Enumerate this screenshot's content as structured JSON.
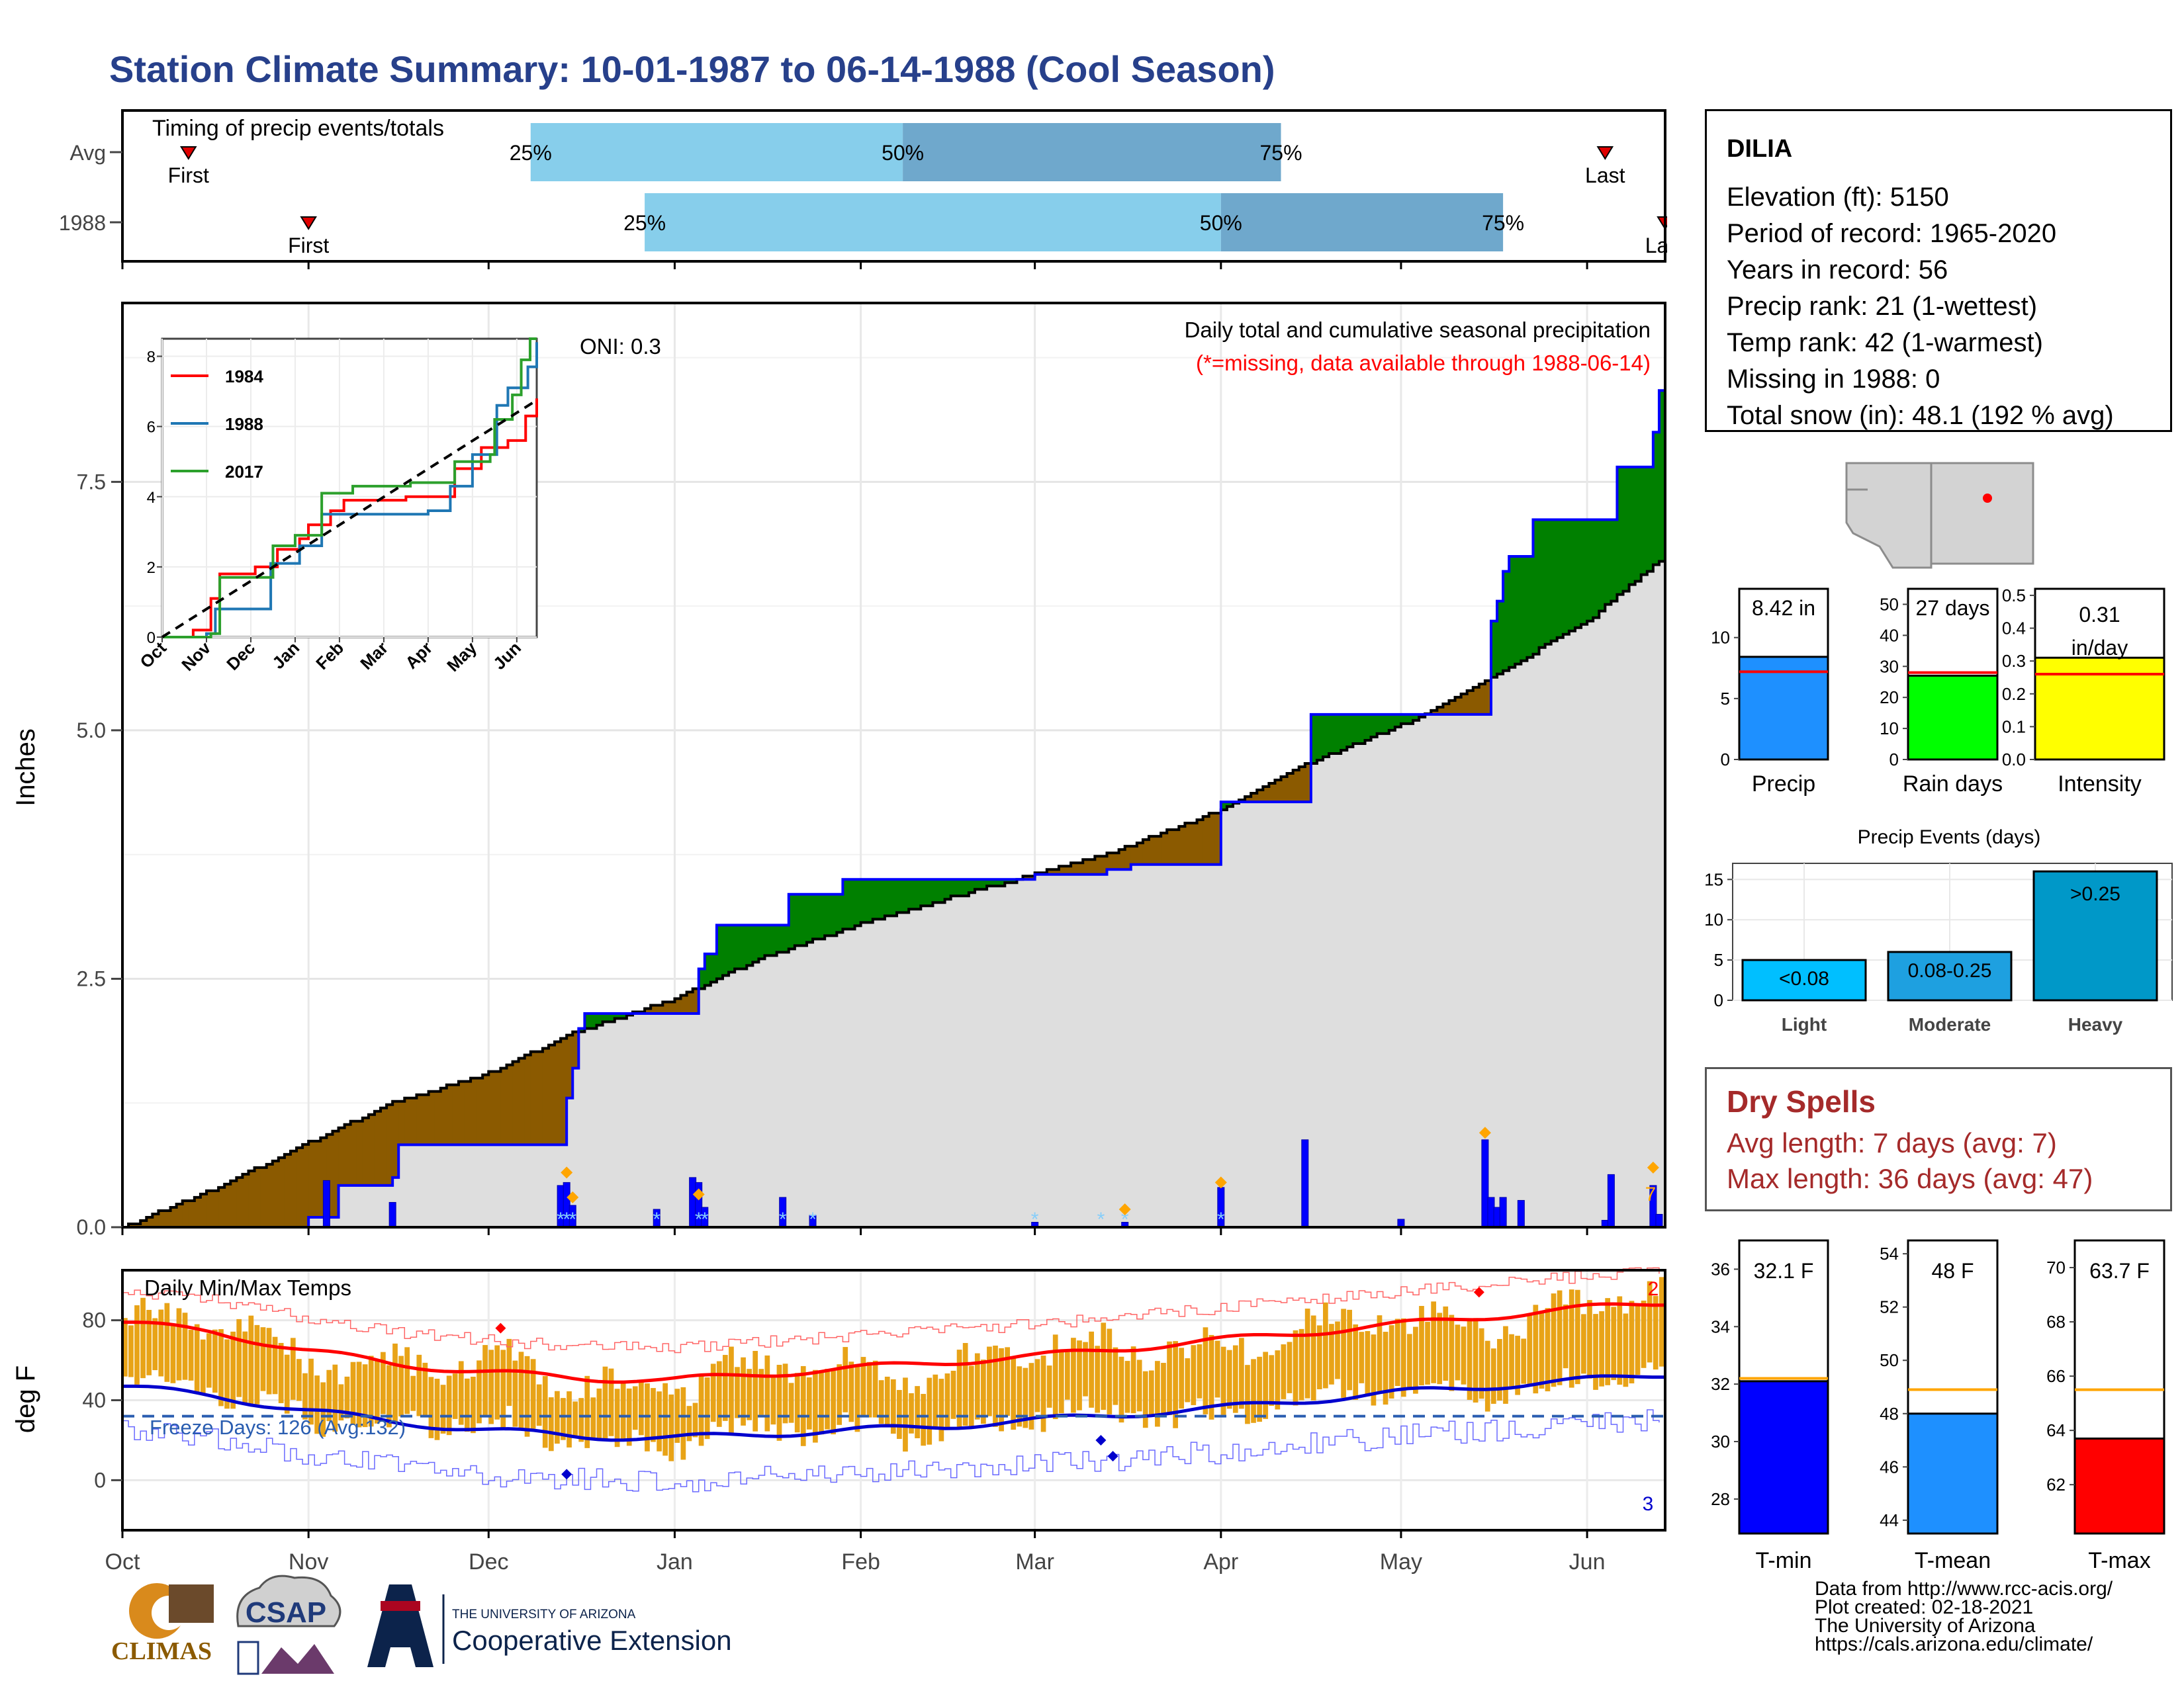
{
  "page": {
    "title": "Station Climate Summary: 10-01-1987 to 06-14-1988 (Cool Season)"
  },
  "colors": {
    "title_blue": "#27408b",
    "light_blue": "#87ceeb",
    "mid_blue": "#6fa8cc",
    "above_green": "#008000",
    "below_brown": "#8b5a00",
    "normal_gray": "#dedede",
    "precip_bar": "#0000ff",
    "temp_bar": "#e8a317",
    "tmax_red": "#ff0000",
    "tmin_blue": "#0000cd"
  },
  "station": {
    "name": "DILIA",
    "lines": [
      "Elevation (ft): 5150",
      "Period of record: 1965-2020",
      "Years in record: 56",
      "Precip rank: 21 (1-wettest)",
      "Temp rank: 42 (1-warmest)",
      "Missing in 1988: 0",
      "Total snow (in): 48.1 (192 % avg)"
    ]
  },
  "dry_spells": {
    "title": "Dry Spells",
    "avg": "Avg length: 7 days (avg: 7)",
    "max": "Max length: 36 days (avg: 47)"
  },
  "credits": [
    "Data from http://www.rcc-acis.org/",
    "Plot created: 02-18-2021",
    "The University of Arizona",
    "https://cals.arizona.edu/climate/"
  ],
  "logos": {
    "climas": "CLIMAS",
    "csap": "CSAP",
    "ua_top": "THE UNIVERSITY OF ARIZONA",
    "ua_main": "Cooperative Extension"
  },
  "chart_data": [
    {
      "id": "timing",
      "type": "bar",
      "title": "Timing of precip events/totals",
      "categories": [
        "Avg",
        "1988"
      ],
      "x_domain": [
        "1987-10-01",
        "1988-06-14"
      ],
      "rows": [
        {
          "label": "Avg",
          "first_date": "1987-10-12",
          "p25_date": "1987-12-08",
          "p50_date": "1988-02-08",
          "p75_date": "1988-04-11",
          "last_date": "1988-06-04",
          "first_label": "First",
          "last_label": "Last"
        },
        {
          "label": "1988",
          "first_date": "1987-11-01",
          "p25_date": "1987-12-27",
          "p50_date": "1988-04-01",
          "p75_date": "1988-05-18",
          "last_date": "1988-06-14",
          "first_label": "First",
          "last_label": "Last"
        }
      ],
      "pct_labels": [
        "25%",
        "50%",
        "75%"
      ]
    },
    {
      "id": "precip",
      "type": "area",
      "title": "Daily total and cumulative seasonal precipitation",
      "subtitle": "(*=missing, data available through 1988-06-14)",
      "annotation": "ONI: 0.3",
      "ylabel": "Inches",
      "ylim": [
        0,
        9.3
      ],
      "yticks": [
        "0.0",
        "2.5",
        "5.0",
        "7.5"
      ],
      "x_range": [
        "1987-10-01",
        "1988-06-14"
      ],
      "observed_cumulative": [
        [
          "1987-10-01",
          0.0
        ],
        [
          "1987-10-31",
          0.0
        ],
        [
          "1987-11-01",
          0.1
        ],
        [
          "1987-11-06",
          0.42
        ],
        [
          "1987-11-15",
          0.5
        ],
        [
          "1987-11-16",
          0.83
        ],
        [
          "1987-12-13",
          0.83
        ],
        [
          "1987-12-14",
          1.3
        ],
        [
          "1987-12-15",
          1.6
        ],
        [
          "1987-12-16",
          2.0
        ],
        [
          "1987-12-17",
          2.15
        ],
        [
          "1988-01-04",
          2.15
        ],
        [
          "1988-01-05",
          2.6
        ],
        [
          "1988-01-06",
          2.75
        ],
        [
          "1988-01-08",
          3.04
        ],
        [
          "1988-01-19",
          3.04
        ],
        [
          "1988-01-20",
          3.35
        ],
        [
          "1988-01-28",
          3.35
        ],
        [
          "1988-01-29",
          3.5
        ],
        [
          "1988-02-28",
          3.5
        ],
        [
          "1988-03-01",
          3.55
        ],
        [
          "1988-03-13",
          3.6
        ],
        [
          "1988-03-17",
          3.65
        ],
        [
          "1988-03-31",
          3.65
        ],
        [
          "1988-04-01",
          4.28
        ],
        [
          "1988-04-15",
          4.28
        ],
        [
          "1988-04-16",
          5.16
        ],
        [
          "1988-05-15",
          5.16
        ],
        [
          "1988-05-16",
          6.1
        ],
        [
          "1988-05-17",
          6.3
        ],
        [
          "1988-05-18",
          6.6
        ],
        [
          "1988-05-19",
          6.75
        ],
        [
          "1988-05-22",
          6.75
        ],
        [
          "1988-05-23",
          7.12
        ],
        [
          "1988-06-05",
          7.12
        ],
        [
          "1988-06-06",
          7.65
        ],
        [
          "1988-06-11",
          7.65
        ],
        [
          "1988-06-12",
          8.0
        ],
        [
          "1988-06-13",
          8.42
        ],
        [
          "1988-06-14",
          8.42
        ]
      ],
      "normal_cumulative": [
        [
          "1987-10-01",
          0.0
        ],
        [
          "1987-10-15",
          0.35
        ],
        [
          "1987-11-01",
          0.85
        ],
        [
          "1987-11-15",
          1.25
        ],
        [
          "1987-12-01",
          1.55
        ],
        [
          "1987-12-15",
          1.95
        ],
        [
          "1988-01-01",
          2.3
        ],
        [
          "1988-01-15",
          2.7
        ],
        [
          "1988-02-01",
          3.05
        ],
        [
          "1988-02-15",
          3.3
        ],
        [
          "1988-03-01",
          3.55
        ],
        [
          "1988-03-15",
          3.8
        ],
        [
          "1988-04-01",
          4.2
        ],
        [
          "1988-04-15",
          4.65
        ],
        [
          "1988-05-01",
          5.05
        ],
        [
          "1988-05-15",
          5.5
        ],
        [
          "1988-06-01",
          6.1
        ],
        [
          "1988-06-14",
          6.75
        ]
      ],
      "daily_precip": [
        [
          "1987-11-04",
          0.47
        ],
        [
          "1987-11-15",
          0.25
        ],
        [
          "1987-12-13",
          0.42
        ],
        [
          "1987-12-14",
          0.45
        ],
        [
          "1987-12-15",
          0.22
        ],
        [
          "1987-12-29",
          0.18
        ],
        [
          "1988-01-04",
          0.5
        ],
        [
          "1988-01-05",
          0.45
        ],
        [
          "1988-01-06",
          0.2
        ],
        [
          "1988-01-19",
          0.3
        ],
        [
          "1988-01-24",
          0.12
        ],
        [
          "1988-03-01",
          0.05
        ],
        [
          "1988-03-16",
          0.05
        ],
        [
          "1988-04-01",
          0.4
        ],
        [
          "1988-04-15",
          0.88
        ],
        [
          "1988-05-01",
          0.08
        ],
        [
          "1988-05-15",
          0.88
        ],
        [
          "1988-05-16",
          0.3
        ],
        [
          "1988-05-17",
          0.2
        ],
        [
          "1988-05-18",
          0.3
        ],
        [
          "1988-05-21",
          0.27
        ],
        [
          "1988-06-04",
          0.07
        ],
        [
          "1988-06-05",
          0.53
        ],
        [
          "1988-06-12",
          0.42
        ],
        [
          "1988-06-13",
          0.13
        ]
      ],
      "snow_markers": [
        "1987-12-13",
        "1987-12-14",
        "1987-12-15",
        "1987-12-29",
        "1988-01-05",
        "1988-01-06",
        "1988-01-19",
        "1988-01-24",
        "1988-03-01",
        "1988-03-12",
        "1988-03-16",
        "1988-04-01"
      ],
      "record_markers": [
        [
          "1987-12-14",
          0.55
        ],
        [
          "1987-12-15",
          0.3
        ],
        [
          "1988-01-05",
          0.33
        ],
        [
          "1988-03-16",
          0.18
        ],
        [
          "1988-04-01",
          0.45
        ],
        [
          "1988-05-15",
          0.95
        ],
        [
          "1988-06-12",
          0.6
        ]
      ],
      "record_count_label": "7"
    },
    {
      "id": "inset",
      "type": "line",
      "x_ticks": [
        "Oct",
        "Nov",
        "Dec",
        "Jan",
        "Feb",
        "Mar",
        "Apr",
        "May",
        "Jun"
      ],
      "ylim": [
        0,
        8.5
      ],
      "yticks": [
        "0",
        "2",
        "4",
        "6",
        "8"
      ],
      "series": [
        {
          "name": "1984",
          "color": "#ff0000",
          "points": [
            [
              0,
              0
            ],
            [
              0.7,
              0.2
            ],
            [
              1.1,
              1.1
            ],
            [
              1.3,
              1.8
            ],
            [
              2.1,
              2.0
            ],
            [
              2.6,
              2.5
            ],
            [
              3.1,
              2.8
            ],
            [
              3.3,
              3.2
            ],
            [
              3.8,
              3.6
            ],
            [
              4.1,
              3.9
            ],
            [
              5.5,
              4.0
            ],
            [
              6.4,
              4.0
            ],
            [
              6.6,
              4.8
            ],
            [
              7.2,
              5.4
            ],
            [
              7.8,
              5.6
            ],
            [
              8.2,
              6.3
            ],
            [
              8.45,
              6.8
            ]
          ]
        },
        {
          "name": "1988",
          "color": "#1f77b4",
          "points": [
            [
              0,
              0
            ],
            [
              1.0,
              0.1
            ],
            [
              1.2,
              0.8
            ],
            [
              2.4,
              0.8
            ],
            [
              2.45,
              2.1
            ],
            [
              3.1,
              2.6
            ],
            [
              3.6,
              3.5
            ],
            [
              5.0,
              3.5
            ],
            [
              6.0,
              3.6
            ],
            [
              6.5,
              4.3
            ],
            [
              7.0,
              5.2
            ],
            [
              7.5,
              5.2
            ],
            [
              7.55,
              6.6
            ],
            [
              7.8,
              7.1
            ],
            [
              8.2,
              7.1
            ],
            [
              8.25,
              7.7
            ],
            [
              8.45,
              8.4
            ]
          ]
        },
        {
          "name": "2017",
          "color": "#2ca02c",
          "points": [
            [
              0,
              0
            ],
            [
              1.1,
              0.1
            ],
            [
              1.3,
              1.7
            ],
            [
              2.5,
              2.6
            ],
            [
              3.0,
              2.9
            ],
            [
              3.6,
              4.1
            ],
            [
              4.3,
              4.3
            ],
            [
              5.6,
              4.4
            ],
            [
              6.6,
              5.0
            ],
            [
              7.4,
              5.2
            ],
            [
              7.5,
              6.2
            ],
            [
              7.9,
              6.9
            ],
            [
              8.1,
              7.9
            ],
            [
              8.3,
              8.5
            ],
            [
              8.45,
              8.5
            ]
          ]
        }
      ],
      "normal_line": [
        [
          0,
          0
        ],
        [
          8.45,
          6.75
        ]
      ]
    },
    {
      "id": "temps",
      "type": "bar",
      "title": "Daily Min/Max Temps",
      "ylabel": "deg F",
      "ylim": [
        -25,
        105
      ],
      "yticks": [
        "0",
        "40",
        "80"
      ],
      "freeze_line": 32,
      "freeze_label": "Freeze Days: 126 (Avg:132)",
      "max_records_label": "2",
      "min_records_label": "3",
      "x_ticks": [
        "Oct",
        "Nov",
        "Dec",
        "Jan",
        "Feb",
        "Mar",
        "Apr",
        "May",
        "Jun"
      ],
      "normal_max": [
        [
          0,
          79
        ],
        [
          0.5,
          74
        ],
        [
          1.0,
          65
        ],
        [
          1.5,
          58
        ],
        [
          2.0,
          54
        ],
        [
          2.5,
          51
        ],
        [
          3.0,
          50
        ],
        [
          3.5,
          53
        ],
        [
          4.0,
          56
        ],
        [
          4.5,
          59
        ],
        [
          5.0,
          62
        ],
        [
          5.5,
          66
        ],
        [
          6.0,
          70
        ],
        [
          6.5,
          74
        ],
        [
          7.0,
          78
        ],
        [
          7.5,
          82
        ],
        [
          8.0,
          86
        ],
        [
          8.45,
          89
        ]
      ],
      "normal_min": [
        [
          0,
          47
        ],
        [
          0.5,
          42
        ],
        [
          1.0,
          35
        ],
        [
          1.5,
          29
        ],
        [
          2.0,
          25
        ],
        [
          2.5,
          22
        ],
        [
          3.0,
          21
        ],
        [
          3.5,
          23
        ],
        [
          4.0,
          25
        ],
        [
          4.5,
          27
        ],
        [
          5.0,
          30
        ],
        [
          5.5,
          33
        ],
        [
          6.0,
          36
        ],
        [
          6.5,
          40
        ],
        [
          7.0,
          44
        ],
        [
          7.5,
          47
        ],
        [
          8.0,
          50
        ],
        [
          8.45,
          53
        ]
      ]
    },
    {
      "id": "summary-precip",
      "type": "bar",
      "categories": [
        "Precip",
        "Rain days",
        "Intensity"
      ],
      "values": [
        8.42,
        27,
        0.31
      ],
      "value_labels": [
        "8.42 in",
        "27 days",
        "0.31 in/day"
      ],
      "normals": [
        7.2,
        28,
        0.26
      ],
      "ylims": [
        [
          0,
          14
        ],
        [
          0,
          55
        ],
        [
          0,
          0.52
        ]
      ],
      "yticks": [
        [
          "0",
          "5",
          "10"
        ],
        [
          "0",
          "10",
          "20",
          "30",
          "40",
          "50"
        ],
        [
          "0.0",
          "0.1",
          "0.2",
          "0.3",
          "0.4",
          "0.5"
        ]
      ],
      "colors": [
        "#1e90ff",
        "#00ff00",
        "#ffff00"
      ]
    },
    {
      "id": "precip-events",
      "type": "bar",
      "title": "Precip Events (days)",
      "categories": [
        "Light",
        "Moderate",
        "Heavy"
      ],
      "bar_labels": [
        "<0.08",
        "0.08-0.25",
        ">0.25"
      ],
      "values": [
        5,
        6,
        16
      ],
      "ylim": [
        0,
        17
      ],
      "yticks": [
        "0",
        "5",
        "10",
        "15"
      ],
      "colors": [
        "#00bfff",
        "#1ea0e0",
        "#0098c8"
      ]
    },
    {
      "id": "summary-temp",
      "type": "bar",
      "categories": [
        "T-min",
        "T-mean",
        "T-max"
      ],
      "values": [
        32.1,
        48,
        63.7
      ],
      "value_labels": [
        "32.1 F",
        "48 F",
        "63.7 F"
      ],
      "normals": [
        32.2,
        48.9,
        65.5
      ],
      "ylims": [
        [
          26.8,
          37
        ],
        [
          43.5,
          54.5
        ],
        [
          60.2,
          71
        ]
      ],
      "yticks": [
        [
          "28",
          "30",
          "32",
          "34",
          "36"
        ],
        [
          "44",
          "46",
          "48",
          "50",
          "52",
          "54"
        ],
        [
          "62",
          "64",
          "66",
          "68",
          "70"
        ]
      ],
      "colors": [
        "#0000ff",
        "#1e90ff",
        "#ff0000"
      ]
    }
  ]
}
